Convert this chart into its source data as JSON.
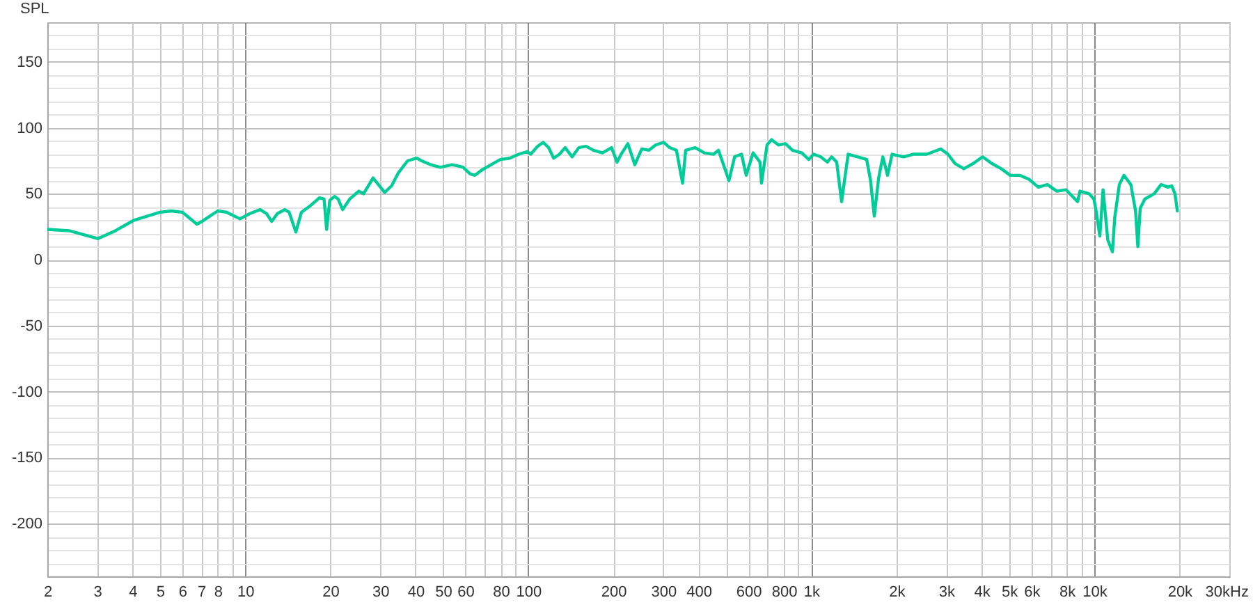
{
  "chart_data": {
    "type": "line",
    "xlabel": "Hz",
    "ylabel": "SPL",
    "log": "x",
    "grid": true,
    "xlim": [
      2,
      30000
    ],
    "ylim": [
      -240,
      180
    ],
    "xticks": [
      2,
      3,
      4,
      5,
      6,
      7,
      8,
      {
        "value": 9,
        "label": null
      },
      10,
      20,
      30,
      40,
      50,
      60,
      {
        "value": 70,
        "label": null
      },
      80,
      {
        "value": 90,
        "label": null
      },
      100,
      200,
      300,
      400,
      {
        "value": 500,
        "label": null
      },
      600,
      {
        "value": 700,
        "label": null
      },
      800,
      {
        "value": 900,
        "label": null
      },
      {
        "value": 1000,
        "label": "1k"
      },
      {
        "value": 2000,
        "label": "2k"
      },
      {
        "value": 3000,
        "label": "3k"
      },
      {
        "value": 4000,
        "label": "4k"
      },
      {
        "value": 5000,
        "label": "5k"
      },
      {
        "value": 6000,
        "label": "6k"
      },
      {
        "value": 7000,
        "label": null
      },
      {
        "value": 8000,
        "label": "8k"
      },
      {
        "value": 9000,
        "label": null
      },
      {
        "value": 10000,
        "label": "10k"
      },
      {
        "value": 20000,
        "label": "20k"
      },
      {
        "value": 30000,
        "label": "30k"
      }
    ],
    "yticks": [
      {
        "value": -230,
        "label": null
      },
      {
        "value": -220,
        "label": null
      },
      {
        "value": -210,
        "label": null
      },
      -200,
      {
        "value": -190,
        "label": null
      },
      {
        "value": -180,
        "label": null
      },
      {
        "value": -170,
        "label": null
      },
      {
        "value": -160,
        "label": null
      },
      -150,
      {
        "value": -140,
        "label": null
      },
      {
        "value": -130,
        "label": null
      },
      {
        "value": -120,
        "label": null
      },
      {
        "value": -110,
        "label": null
      },
      -100,
      {
        "value": -90,
        "label": null
      },
      {
        "value": -80,
        "label": null
      },
      {
        "value": -70,
        "label": null
      },
      {
        "value": -60,
        "label": null
      },
      -50,
      {
        "value": -40,
        "label": null
      },
      {
        "value": -30,
        "label": null
      },
      {
        "value": -20,
        "label": null
      },
      {
        "value": -10,
        "label": null
      },
      0,
      {
        "value": 10,
        "label": null
      },
      {
        "value": 20,
        "label": null
      },
      {
        "value": 30,
        "label": null
      },
      {
        "value": 40,
        "label": null
      },
      50,
      {
        "value": 60,
        "label": null
      },
      {
        "value": 70,
        "label": null
      },
      {
        "value": 80,
        "label": null
      },
      {
        "value": 90,
        "label": null
      },
      100,
      {
        "value": 110,
        "label": null
      },
      {
        "value": 120,
        "label": null
      },
      {
        "value": 130,
        "label": null
      },
      {
        "value": 140,
        "label": null
      },
      150,
      {
        "value": 160,
        "label": null
      },
      {
        "value": 170,
        "label": null
      }
    ],
    "x": [
      2,
      2.39,
      3.02,
      3.48,
      4.05,
      5,
      5.48,
      6,
      6.75,
      7.03,
      8,
      8.61,
      9.58,
      10.4,
      11.3,
      11.9,
      12.4,
      13,
      13.8,
      14.3,
      15.1,
      15.8,
      17,
      18.3,
      19,
      19.4,
      19.9,
      20.7,
      21.3,
      22.1,
      23.4,
      25.2,
      26.2,
      28.3,
      31.1,
      32.9,
      34.8,
      37.5,
      40.4,
      42,
      45.3,
      48.9,
      53.7,
      56.8,
      58.9,
      62.4,
      64.8,
      68.6,
      73.9,
      79.7,
      86,
      92.7,
      99.2,
      102,
      108,
      113,
      118,
      123,
      129,
      135,
      143,
      151,
      160,
      170,
      183,
      197,
      206,
      213,
      225,
      238,
      252,
      267,
      282,
      301,
      316,
      334,
      351,
      360,
      389,
      419,
      452,
      470,
      512,
      536,
      567,
      589,
      623,
      659,
      667,
      698,
      724,
      766,
      811,
      858,
      926,
      980,
      1020,
      1080,
      1140,
      1180,
      1230,
      1280,
      1350,
      1460,
      1570,
      1620,
      1670,
      1730,
      1790,
      1860,
      1930,
      2120,
      2290,
      2560,
      2870,
      3040,
      3220,
      3460,
      3740,
      4030,
      4340,
      4690,
      5050,
      5450,
      5880,
      6340,
      6830,
      7370,
      7950,
      8730,
      8900,
      9590,
      9970,
      10150,
      10460,
      10740,
      11160,
      11590,
      11810,
      12260,
      12730,
      13460,
      13990,
      14250,
      14530,
      15080,
      16270,
      17220,
      18210,
      18780,
      19280,
      19650
    ],
    "series": [
      {
        "color": "#00cc99",
        "values": [
          23,
          22,
          16,
          22,
          30,
          36,
          37,
          36,
          27,
          29,
          37,
          36,
          31,
          35,
          38,
          35,
          29,
          35,
          38,
          36,
          21,
          36,
          41,
          47,
          46,
          23,
          45,
          48,
          46,
          38,
          46,
          52,
          50,
          62,
          51,
          56,
          66,
          75,
          77,
          75,
          72,
          70,
          72,
          71,
          70,
          65,
          64,
          68,
          72,
          76,
          77,
          80,
          82,
          80,
          86,
          89,
          85,
          77,
          80,
          85,
          78,
          85,
          86,
          83,
          81,
          85,
          74,
          80,
          88,
          72,
          84,
          83,
          87,
          89,
          85,
          83,
          58,
          83,
          85,
          81,
          80,
          83,
          60,
          78,
          80,
          64,
          81,
          74,
          58,
          87,
          91,
          87,
          88,
          83,
          81,
          76,
          80,
          78,
          74,
          78,
          74,
          44,
          80,
          78,
          76,
          60,
          33,
          62,
          78,
          64,
          80,
          78,
          80,
          80,
          84,
          80,
          73,
          69,
          73,
          78,
          73,
          69,
          64,
          64,
          61,
          55,
          57,
          52,
          53,
          44,
          52,
          50,
          46,
          37,
          18,
          53,
          15,
          6,
          32,
          57,
          64,
          57,
          37,
          10,
          39,
          46,
          50,
          57,
          55,
          56,
          50,
          37
        ]
      }
    ]
  }
}
